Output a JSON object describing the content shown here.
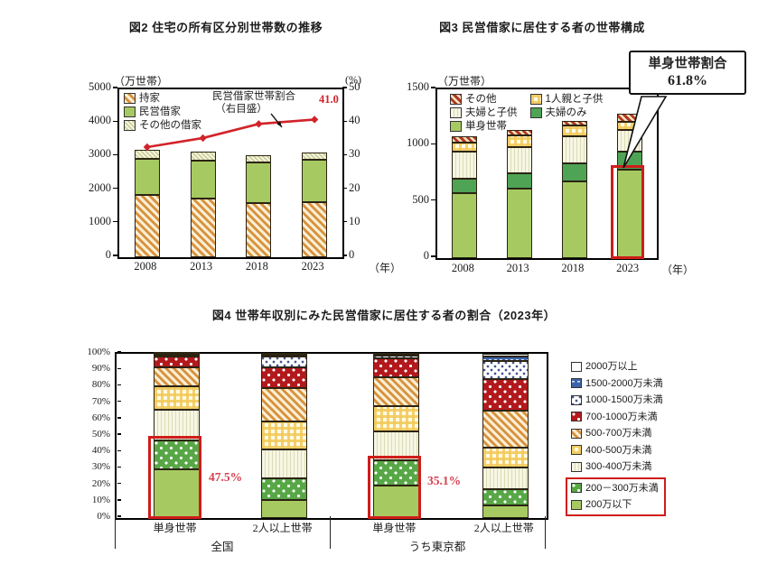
{
  "chart_data": [
    {
      "id": "fig2",
      "type": "stacked-bar+line",
      "title": "図2 住宅の所有区分別世帯数の推移",
      "ylabel_left": "（万世帯）",
      "ylabel_right": "(%)",
      "xlabel_unit": "（年）",
      "categories": [
        "2008",
        "2013",
        "2018",
        "2023"
      ],
      "ylim_left": [
        0,
        5000
      ],
      "yticks_left": [
        0,
        1000,
        2000,
        3000,
        4000,
        5000
      ],
      "ylim_right": [
        0,
        50
      ],
      "yticks_right": [
        0,
        10,
        20,
        30,
        40,
        50
      ],
      "series": [
        {
          "name": "持家",
          "pattern": "orange-hatch",
          "values": [
            1850,
            1760,
            1600,
            1630
          ]
        },
        {
          "name": "民営借家",
          "pattern": "green-solid",
          "values": [
            1080,
            1110,
            1230,
            1270
          ]
        },
        {
          "name": "その他の借家",
          "pattern": "light-hatch",
          "values": [
            270,
            270,
            210,
            220
          ]
        }
      ],
      "legend_order": [
        "持家",
        "民営借家",
        "その他の借家"
      ],
      "line": {
        "name": "民営借家世帯割合（右目盛）",
        "label_line1": "民営借家世帯割合",
        "label_line2": "（右目盛）",
        "values": [
          32.8,
          35.5,
          39.7,
          41.0
        ],
        "end_label": "41.0",
        "color": "#d2232a",
        "axis": "right"
      }
    },
    {
      "id": "fig3",
      "type": "stacked-bar",
      "title": "図3 民営借家に居住する者の世帯構成",
      "ylabel": "（万世帯）",
      "xlabel_unit": "（年）",
      "categories": [
        "2008",
        "2013",
        "2018",
        "2023"
      ],
      "ylim": [
        0,
        1500
      ],
      "yticks": [
        0,
        500,
        1000,
        1500
      ],
      "series": [
        {
          "name": "単身世帯",
          "pattern": "green-solid",
          "values": [
            575,
            615,
            680,
            790
          ]
        },
        {
          "name": "夫婦のみ",
          "pattern": "darkgreen-solid",
          "values": [
            130,
            140,
            160,
            160
          ]
        },
        {
          "name": "夫婦と子供",
          "pattern": "cream-vstripe",
          "values": [
            240,
            235,
            240,
            190
          ]
        },
        {
          "name": "1人親と子供",
          "pattern": "yellow-check",
          "values": [
            80,
            100,
            100,
            70
          ]
        },
        {
          "name": "その他",
          "pattern": "red-hatch",
          "values": [
            55,
            50,
            40,
            70
          ]
        }
      ],
      "legend_order": [
        "その他",
        "1人親と子供",
        "夫婦と子供",
        "夫婦のみ",
        "単身世帯"
      ],
      "callout": {
        "line1": "単身世帯割合",
        "line2": "61.8%"
      },
      "highlight": {
        "bar_index": 3,
        "series": "単身世帯"
      }
    },
    {
      "id": "fig4",
      "type": "100%-stacked-bar",
      "title": "図4 世帯年収別にみた民営借家に居住する者の割合（2023年）",
      "groups": [
        "全国",
        "うち東京都"
      ],
      "categories": [
        "単身世帯",
        "2人以上世帯",
        "単身世帯",
        "2人以上世帯"
      ],
      "ylim": [
        0,
        100
      ],
      "yticks": [
        0,
        10,
        20,
        30,
        40,
        50,
        60,
        70,
        80,
        90,
        100
      ],
      "series": [
        {
          "name": "200万以下",
          "pattern": "green-solid",
          "values": [
            29.5,
            11.0,
            20.0,
            7.5
          ]
        },
        {
          "name": "200－300万未満",
          "pattern": "green-dots",
          "values": [
            18.0,
            13.0,
            15.1,
            10.0
          ]
        },
        {
          "name": "300-400万未満",
          "pattern": "cream-vstripe",
          "values": [
            18.5,
            18.0,
            17.4,
            13.5
          ]
        },
        {
          "name": "400-500万未満",
          "pattern": "yellow-check",
          "values": [
            14.0,
            17.0,
            15.5,
            12.0
          ]
        },
        {
          "name": "500-700万未満",
          "pattern": "orange-hatch",
          "values": [
            12.0,
            20.0,
            17.5,
            22.5
          ]
        },
        {
          "name": "700-1000万未満",
          "pattern": "red-dots",
          "values": [
            6.5,
            13.0,
            11.5,
            19.0
          ]
        },
        {
          "name": "1000-1500万未満",
          "pattern": "white-dots",
          "values": [
            1.0,
            6.5,
            2.0,
            11.0
          ]
        },
        {
          "name": "1500-2000万未満",
          "pattern": "blue-solid",
          "values": [
            0.3,
            1.0,
            0.6,
            3.0
          ]
        },
        {
          "name": "2000万以上",
          "pattern": "white-plain",
          "values": [
            0.2,
            0.5,
            0.4,
            1.5
          ]
        }
      ],
      "legend_order": [
        "2000万以上",
        "1500-2000万未満",
        "1000-1500万未満",
        "700-1000万未満",
        "500-700万未満",
        "400-500万未満",
        "300-400万未満",
        "200－300万未満",
        "200万以下"
      ],
      "legend_boxed": [
        "200－300万未満",
        "200万以下"
      ],
      "annotations": [
        {
          "text": "47.5%",
          "bar_index": 0
        },
        {
          "text": "35.1%",
          "bar_index": 2
        }
      ],
      "highlights": [
        {
          "bar_index": 0,
          "cum_percent": 47.5
        },
        {
          "bar_index": 2,
          "cum_percent": 35.1
        }
      ]
    }
  ]
}
